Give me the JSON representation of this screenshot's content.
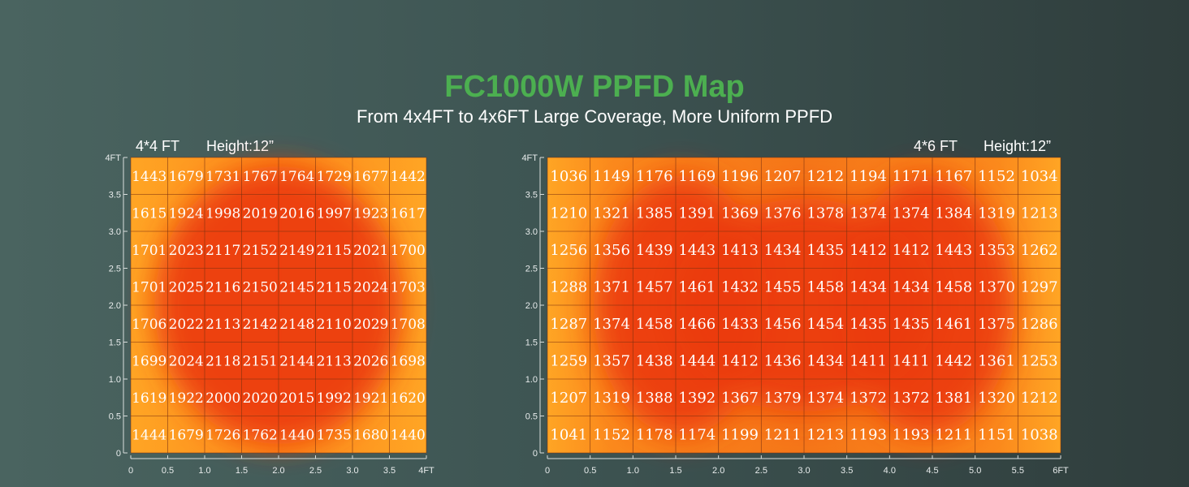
{
  "title": "FC1000W PPFD Map",
  "subtitle": "From 4x4FT to 4x6FT Large Coverage, More Uniform PPFD",
  "chart_data": [
    {
      "type": "heatmap",
      "size_label": "4*4 FT",
      "height_label": "Height:12”",
      "x_ticks": [
        "0",
        "0.5",
        "1.0",
        "1.5",
        "2.0",
        "2.5",
        "3.0",
        "3.5",
        "4FT"
      ],
      "y_ticks": [
        "0",
        "0.5",
        "1.0",
        "1.5",
        "2.0",
        "2.5",
        "3.0",
        "3.5",
        "4FT"
      ],
      "xlim": [
        0,
        4
      ],
      "ylim": [
        0,
        4
      ],
      "values": [
        [
          1443,
          1679,
          1731,
          1767,
          1764,
          1729,
          1677,
          1442
        ],
        [
          1615,
          1924,
          1998,
          2019,
          2016,
          1997,
          1923,
          1617
        ],
        [
          1701,
          2023,
          2117,
          2152,
          2149,
          2115,
          2021,
          1700
        ],
        [
          1701,
          2025,
          2116,
          2150,
          2145,
          2115,
          2024,
          1703
        ],
        [
          1706,
          2022,
          2113,
          2142,
          2148,
          2110,
          2029,
          1708
        ],
        [
          1699,
          2024,
          2118,
          2151,
          2144,
          2113,
          2026,
          1698
        ],
        [
          1619,
          1922,
          2000,
          2020,
          2015,
          1992,
          1921,
          1620
        ],
        [
          1444,
          1679,
          1726,
          1762,
          1440,
          1735,
          1680,
          1440
        ]
      ]
    },
    {
      "type": "heatmap",
      "size_label": "4*6 FT",
      "height_label": "Height:12”",
      "x_ticks": [
        "0",
        "0.5",
        "1.0",
        "1.5",
        "2.0",
        "2.5",
        "3.0",
        "3.5",
        "4.0",
        "4.5",
        "5.0",
        "5.5",
        "6FT"
      ],
      "y_ticks": [
        "0",
        "0.5",
        "1.0",
        "1.5",
        "2.0",
        "2.5",
        "3.0",
        "3.5",
        "4FT"
      ],
      "xlim": [
        0,
        6
      ],
      "ylim": [
        0,
        4
      ],
      "values": [
        [
          1036,
          1149,
          1176,
          1169,
          1196,
          1207,
          1212,
          1194,
          1171,
          1167,
          1152,
          1034
        ],
        [
          1210,
          1321,
          1385,
          1391,
          1369,
          1376,
          1378,
          1374,
          1374,
          1384,
          1319,
          1213
        ],
        [
          1256,
          1356,
          1439,
          1443,
          1413,
          1434,
          1435,
          1412,
          1412,
          1443,
          1353,
          1262
        ],
        [
          1288,
          1371,
          1457,
          1461,
          1432,
          1455,
          1458,
          1434,
          1434,
          1458,
          1370,
          1297
        ],
        [
          1287,
          1374,
          1458,
          1466,
          1433,
          1456,
          1454,
          1435,
          1435,
          1461,
          1375,
          1286
        ],
        [
          1259,
          1357,
          1438,
          1444,
          1412,
          1436,
          1434,
          1411,
          1411,
          1442,
          1361,
          1253
        ],
        [
          1207,
          1319,
          1388,
          1392,
          1367,
          1379,
          1374,
          1372,
          1372,
          1381,
          1320,
          1212
        ],
        [
          1041,
          1152,
          1178,
          1174,
          1199,
          1211,
          1213,
          1193,
          1193,
          1211,
          1151,
          1038
        ]
      ]
    }
  ]
}
